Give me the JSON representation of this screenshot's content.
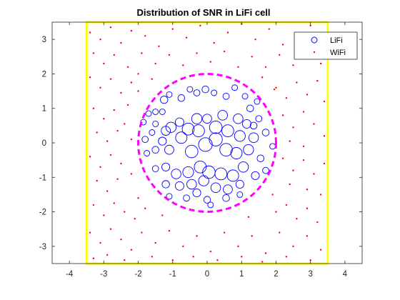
{
  "chart_data": {
    "type": "scatter",
    "title": "Distribution of SNR in LiFi cell",
    "xlabel": "",
    "ylabel": "",
    "xlim": [
      -4.5,
      4.5
    ],
    "ylim": [
      -3.5,
      3.5
    ],
    "xticks": [
      -4,
      -3,
      -2,
      -1,
      0,
      1,
      2,
      3,
      4
    ],
    "yticks": [
      -3,
      -2,
      -1,
      0,
      1,
      2,
      3
    ],
    "tick_labels_x": [
      "-4",
      "-3",
      "-2",
      "-1",
      "0",
      "1",
      "2",
      "3",
      "4"
    ],
    "tick_labels_y": [
      "-3",
      "-2",
      "-1",
      "0",
      "1",
      "2",
      "3"
    ],
    "grid": false,
    "legend_placement": "top-right",
    "legend": [
      "LiFi",
      "WiFi"
    ],
    "colors": {
      "lifi": "#0000ff",
      "wifi": "#ff0000",
      "room_boundary": "#ffff00",
      "cell_boundary": "#ff00ff",
      "axes": "#262626"
    },
    "shapes": {
      "room_boundary": {
        "type": "rectangle",
        "x": [
          -3.5,
          3.5
        ],
        "y": [
          -3.5,
          3.5
        ]
      },
      "cell_boundary": {
        "type": "circle",
        "center": [
          0,
          0
        ],
        "radius": 2,
        "style": "dashed"
      }
    },
    "series": [
      {
        "name": "LiFi",
        "marker": "circle-open",
        "points": [
          [
            -1.7,
            0.85
          ],
          [
            -1.5,
            0.9
          ],
          [
            -1.3,
            0.9
          ],
          [
            -1.25,
            1.25
          ],
          [
            -1.1,
            1.4
          ],
          [
            -0.75,
            1.3
          ],
          [
            -0.5,
            1.55
          ],
          [
            -0.3,
            1.45
          ],
          [
            -0.05,
            1.55
          ],
          [
            0.2,
            1.45
          ],
          [
            0.55,
            1.35
          ],
          [
            0.8,
            1.6
          ],
          [
            1.1,
            1.35
          ],
          [
            1.25,
            1.0
          ],
          [
            1.45,
            1.2
          ],
          [
            1.5,
            0.7
          ],
          [
            1.35,
            0.5
          ],
          [
            -1.85,
            0.6
          ],
          [
            -1.5,
            0.55
          ],
          [
            -1.2,
            0.35
          ],
          [
            -0.8,
            0.6
          ],
          [
            -0.3,
            0.7
          ],
          [
            0.0,
            0.7
          ],
          [
            0.45,
            0.8
          ],
          [
            0.9,
            0.7
          ],
          [
            1.15,
            0.55
          ],
          [
            -1.8,
            0.1
          ],
          [
            -1.6,
            0.3
          ],
          [
            -1.3,
            0.05
          ],
          [
            -1.05,
            0.45
          ],
          [
            -0.55,
            0.4
          ],
          [
            -0.25,
            0.35
          ],
          [
            0.25,
            0.45
          ],
          [
            0.6,
            0.35
          ],
          [
            0.95,
            0.2
          ],
          [
            1.35,
            0.15
          ],
          [
            1.7,
            0.3
          ],
          [
            1.9,
            -0.1
          ],
          [
            -1.75,
            -0.3
          ],
          [
            -1.5,
            -0.2
          ],
          [
            -1.1,
            -0.2
          ],
          [
            -0.75,
            0.15
          ],
          [
            -0.45,
            -0.25
          ],
          [
            -0.05,
            -0.05
          ],
          [
            0.25,
            0.1
          ],
          [
            0.55,
            -0.2
          ],
          [
            0.85,
            -0.3
          ],
          [
            1.2,
            -0.2
          ],
          [
            1.55,
            -0.45
          ],
          [
            -1.5,
            -0.75
          ],
          [
            -1.2,
            -0.7
          ],
          [
            -0.9,
            -0.9
          ],
          [
            -0.55,
            -0.85
          ],
          [
            -0.2,
            -0.7
          ],
          [
            0.05,
            -0.85
          ],
          [
            0.4,
            -0.9
          ],
          [
            0.75,
            -0.95
          ],
          [
            1.05,
            -0.7
          ],
          [
            1.4,
            -0.95
          ],
          [
            1.7,
            -0.8
          ],
          [
            -1.2,
            -1.2
          ],
          [
            -0.8,
            -1.25
          ],
          [
            -0.45,
            -1.2
          ],
          [
            -0.1,
            -1.1
          ],
          [
            0.25,
            -1.3
          ],
          [
            0.6,
            -1.35
          ],
          [
            0.95,
            -1.2
          ],
          [
            -1.1,
            -1.55
          ],
          [
            -0.6,
            -1.6
          ],
          [
            0.0,
            -1.65
          ],
          [
            0.55,
            -1.6
          ],
          [
            0.95,
            -1.5
          ],
          [
            -0.3,
            -1.45
          ],
          [
            0.1,
            -1.8
          ]
        ],
        "sizes": [
          1,
          1,
          1,
          1.3,
          1,
          1.2,
          1,
          1.1,
          1.2,
          1,
          1.1,
          1,
          1,
          1.2,
          1,
          1.1,
          1.2,
          1,
          1,
          1.6,
          1.5,
          1.8,
          1.6,
          1.7,
          1.7,
          1.5,
          1.1,
          1,
          1.4,
          1.8,
          2.1,
          2.1,
          2.2,
          2.1,
          1.9,
          1.7,
          1.2,
          1,
          1,
          1.2,
          1.6,
          2,
          2.2,
          2.4,
          2.3,
          2.2,
          2,
          1.8,
          1.2,
          1.1,
          1.4,
          1.7,
          1.9,
          2.1,
          2.2,
          2.1,
          2,
          1.8,
          1.4,
          1.1,
          1.3,
          1.5,
          1.7,
          1.8,
          1.7,
          1.6,
          1.4,
          1,
          1.1,
          1.2,
          1.2,
          1,
          1.4,
          1
        ]
      },
      {
        "name": "WiFi",
        "marker": "dot",
        "points": [
          [
            -3.4,
            3.2
          ],
          [
            -3.1,
            3.0
          ],
          [
            -2.8,
            3.35
          ],
          [
            -2.5,
            2.9
          ],
          [
            -2.2,
            3.25
          ],
          [
            -1.8,
            3.1
          ],
          [
            -1.4,
            2.8
          ],
          [
            -1.0,
            3.3
          ],
          [
            -0.6,
            3.05
          ],
          [
            -0.2,
            3.4
          ],
          [
            0.2,
            2.9
          ],
          [
            0.6,
            3.2
          ],
          [
            1.0,
            3.45
          ],
          [
            1.4,
            3.0
          ],
          [
            1.8,
            3.3
          ],
          [
            2.2,
            2.85
          ],
          [
            2.6,
            3.15
          ],
          [
            3.0,
            3.4
          ],
          [
            3.35,
            2.95
          ],
          [
            -3.3,
            2.6
          ],
          [
            -3.0,
            2.3
          ],
          [
            -2.7,
            2.55
          ],
          [
            -2.3,
            2.2
          ],
          [
            -1.9,
            2.6
          ],
          [
            -1.5,
            2.3
          ],
          [
            -1.1,
            2.55
          ],
          [
            -0.7,
            2.25
          ],
          [
            -0.3,
            2.6
          ],
          [
            0.1,
            2.35
          ],
          [
            0.5,
            2.65
          ],
          [
            0.9,
            2.2
          ],
          [
            1.3,
            2.5
          ],
          [
            1.7,
            2.2
          ],
          [
            2.1,
            2.55
          ],
          [
            2.5,
            2.25
          ],
          [
            2.9,
            2.6
          ],
          [
            3.3,
            2.3
          ],
          [
            -3.4,
            1.9
          ],
          [
            -3.1,
            1.6
          ],
          [
            -2.8,
            1.85
          ],
          [
            -2.5,
            1.45
          ],
          [
            -2.2,
            1.75
          ],
          [
            -2.3,
            1.1
          ],
          [
            -2.0,
            1.5
          ],
          [
            2.0,
            1.6
          ],
          [
            2.3,
            1.3
          ],
          [
            2.6,
            1.75
          ],
          [
            2.9,
            1.4
          ],
          [
            3.2,
            1.8
          ],
          [
            3.4,
            1.2
          ],
          [
            -3.3,
            1.0
          ],
          [
            -3.0,
            0.7
          ],
          [
            -2.7,
            0.95
          ],
          [
            -2.4,
            0.55
          ],
          [
            -3.2,
            0.3
          ],
          [
            -2.9,
            0.05
          ],
          [
            -2.6,
            0.35
          ],
          [
            -2.2,
            0.1
          ],
          [
            2.2,
            0.8
          ],
          [
            2.5,
            0.45
          ],
          [
            2.8,
            0.9
          ],
          [
            3.1,
            0.55
          ],
          [
            3.4,
            0.2
          ],
          [
            2.4,
            0.05
          ],
          [
            2.8,
            -0.1
          ],
          [
            -3.4,
            -0.4
          ],
          [
            -3.1,
            -0.7
          ],
          [
            -2.8,
            -0.35
          ],
          [
            -2.5,
            -0.6
          ],
          [
            -2.2,
            -0.9
          ],
          [
            -3.2,
            -1.1
          ],
          [
            -2.9,
            -1.4
          ],
          [
            -2.6,
            -1.05
          ],
          [
            2.2,
            -0.45
          ],
          [
            2.5,
            -0.8
          ],
          [
            2.8,
            -0.5
          ],
          [
            3.1,
            -0.9
          ],
          [
            3.4,
            -0.6
          ],
          [
            2.4,
            -1.2
          ],
          [
            2.9,
            -1.35
          ],
          [
            3.3,
            -1.5
          ],
          [
            -3.3,
            -1.8
          ],
          [
            -3.0,
            -2.1
          ],
          [
            -2.7,
            -1.75
          ],
          [
            -2.4,
            -2.0
          ],
          [
            -2.1,
            -2.2
          ],
          [
            -1.8,
            -1.9
          ],
          [
            2.0,
            -2.0
          ],
          [
            2.3,
            -1.8
          ],
          [
            2.6,
            -2.2
          ],
          [
            2.9,
            -1.9
          ],
          [
            3.2,
            -2.3
          ],
          [
            -3.4,
            -2.6
          ],
          [
            -3.1,
            -2.9
          ],
          [
            -2.8,
            -2.5
          ],
          [
            -2.5,
            -2.8
          ],
          [
            -2.2,
            -3.1
          ],
          [
            -1.9,
            -2.6
          ],
          [
            -1.5,
            -2.9
          ],
          [
            -1.1,
            -2.55
          ],
          [
            -0.7,
            -3.0
          ],
          [
            -0.3,
            -2.7
          ],
          [
            0.1,
            -3.15
          ],
          [
            0.5,
            -2.6
          ],
          [
            0.9,
            -3.0
          ],
          [
            1.3,
            -2.7
          ],
          [
            1.7,
            -3.2
          ],
          [
            2.1,
            -2.6
          ],
          [
            2.5,
            -3.0
          ],
          [
            2.9,
            -2.7
          ],
          [
            3.3,
            -3.1
          ],
          [
            -3.3,
            -3.35
          ],
          [
            -2.9,
            -3.25
          ],
          [
            -2.4,
            -3.4
          ],
          [
            -1.6,
            -3.3
          ],
          [
            -1.0,
            -3.4
          ],
          [
            -0.4,
            -3.3
          ],
          [
            0.3,
            -3.4
          ],
          [
            1.0,
            -3.3
          ],
          [
            1.6,
            -3.45
          ],
          [
            2.3,
            -3.3
          ],
          [
            3.0,
            -3.4
          ],
          [
            -2.0,
            2.0
          ],
          [
            -1.6,
            1.85
          ],
          [
            1.6,
            1.9
          ],
          [
            1.95,
            1.55
          ],
          [
            -2.0,
            -1.6
          ],
          [
            1.9,
            -1.5
          ],
          [
            -1.3,
            -2.1
          ],
          [
            1.2,
            -2.15
          ]
        ]
      }
    ]
  }
}
